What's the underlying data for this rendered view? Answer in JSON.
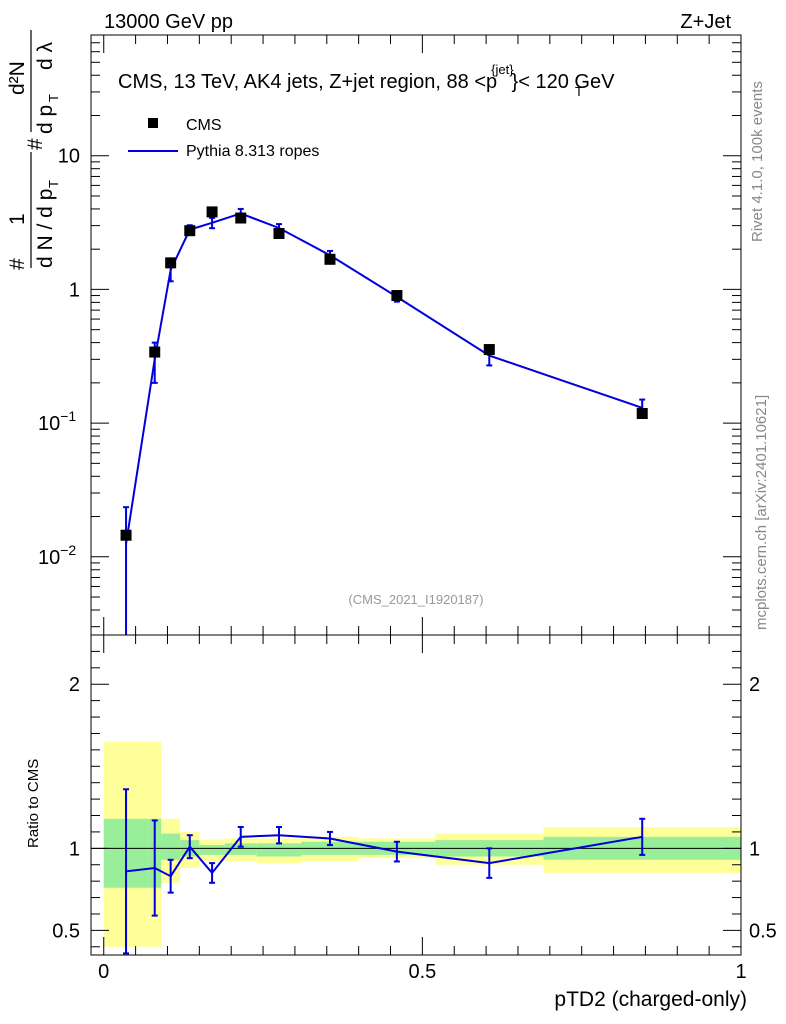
{
  "header": {
    "left": "13000 GeV pp",
    "right": "Z+Jet"
  },
  "side_labels": {
    "rivet": "Rivet 4.1.0,  100k events",
    "mcplots": "mcplots.cern.ch [arXiv:2401.10621]"
  },
  "chart_data": [
    {
      "type": "scatter",
      "panel": "main",
      "title": "CMS, 13 TeV, AK4 jets, Z+jet region, 88 <p",
      "title_sup": "{jet}",
      "title_sub": "T",
      "title_tail": "}< 120 GeV",
      "analysis_id": "(CMS_2021_I1920187)",
      "ylabel": "1 / dN/dpT  d²N / dpT dλ",
      "yscale": "log",
      "ylim": [
        0.0026,
        80
      ],
      "xlim": [
        -0.02,
        1.0
      ],
      "y_ticks": [
        {
          "value": 10,
          "label": "10"
        },
        {
          "value": 1,
          "label": "1"
        },
        {
          "value": 0.1,
          "label": "10",
          "exp": "−1"
        },
        {
          "value": 0.01,
          "label": "10",
          "exp": "−2"
        }
      ],
      "legend": [
        {
          "name": "CMS",
          "marker": "square",
          "color": "#000000"
        },
        {
          "name": "Pythia 8.313 ropes",
          "marker": "line",
          "color": "#0000dd"
        }
      ],
      "series": [
        {
          "name": "CMS",
          "x": [
            0.035,
            0.08,
            0.105,
            0.135,
            0.17,
            0.215,
            0.275,
            0.355,
            0.46,
            0.605,
            0.845
          ],
          "y": [
            0.0145,
            0.34,
            1.58,
            2.75,
            3.8,
            3.42,
            2.62,
            1.68,
            0.9,
            0.355,
            0.118
          ]
        },
        {
          "name": "Pythia 8.313 ropes",
          "x": [
            0.035,
            0.08,
            0.105,
            0.135,
            0.17,
            0.215,
            0.275,
            0.355,
            0.46,
            0.605,
            0.845
          ],
          "y": [
            0.0125,
            0.3,
            1.4,
            2.8,
            3.15,
            3.7,
            2.88,
            1.8,
            0.88,
            0.32,
            0.13
          ],
          "err": [
            0.011,
            0.1,
            0.25,
            0.22,
            0.28,
            0.3,
            0.2,
            0.14,
            0.07,
            0.05,
            0.02
          ]
        }
      ]
    },
    {
      "type": "line",
      "panel": "ratio",
      "ylabel": "Ratio to CMS",
      "xlabel": "pTD2 (charged-only)",
      "ylim": [
        0.35,
        2.3
      ],
      "xlim": [
        -0.02,
        1.0
      ],
      "y_ticks": [
        {
          "value": 2,
          "label": "2"
        },
        {
          "value": 1,
          "label": "1"
        },
        {
          "value": 0.5,
          "label": "0.5"
        }
      ],
      "x_ticks": [
        {
          "value": 0,
          "label": "0"
        },
        {
          "value": 0.5,
          "label": "0.5"
        },
        {
          "value": 1,
          "label": "1"
        }
      ],
      "bands": [
        {
          "x0": 0.0,
          "x1": 0.07,
          "yel": [
            0.4,
            1.65
          ],
          "grn": [
            0.76,
            1.18
          ]
        },
        {
          "x0": 0.07,
          "x1": 0.09,
          "yel": [
            0.4,
            1.65
          ],
          "grn": [
            0.76,
            1.18
          ]
        },
        {
          "x0": 0.09,
          "x1": 0.12,
          "yel": [
            0.79,
            1.18
          ],
          "grn": [
            0.93,
            1.09
          ]
        },
        {
          "x0": 0.12,
          "x1": 0.15,
          "yel": [
            0.88,
            1.1
          ],
          "grn": [
            0.95,
            1.05
          ]
        },
        {
          "x0": 0.15,
          "x1": 0.19,
          "yel": [
            0.92,
            1.05
          ],
          "grn": [
            0.96,
            1.02
          ]
        },
        {
          "x0": 0.19,
          "x1": 0.24,
          "yel": [
            0.92,
            1.06
          ],
          "grn": [
            0.96,
            1.03
          ]
        },
        {
          "x0": 0.24,
          "x1": 0.31,
          "yel": [
            0.91,
            1.06
          ],
          "grn": [
            0.95,
            1.03
          ]
        },
        {
          "x0": 0.31,
          "x1": 0.4,
          "yel": [
            0.92,
            1.07
          ],
          "grn": [
            0.96,
            1.04
          ]
        },
        {
          "x0": 0.4,
          "x1": 0.52,
          "yel": [
            0.94,
            1.06
          ],
          "grn": [
            0.96,
            1.04
          ]
        },
        {
          "x0": 0.52,
          "x1": 0.69,
          "yel": [
            0.9,
            1.09
          ],
          "grn": [
            0.95,
            1.05
          ]
        },
        {
          "x0": 0.69,
          "x1": 1.0,
          "yel": [
            0.85,
            1.13
          ],
          "grn": [
            0.93,
            1.07
          ]
        }
      ],
      "series": [
        {
          "name": "Pythia 8.313 ropes / CMS",
          "x": [
            0.035,
            0.08,
            0.105,
            0.135,
            0.17,
            0.215,
            0.275,
            0.355,
            0.46,
            0.605,
            0.845
          ],
          "y": [
            0.86,
            0.88,
            0.83,
            1.01,
            0.85,
            1.07,
            1.08,
            1.06,
            0.98,
            0.91,
            1.07
          ],
          "err": [
            0.5,
            0.29,
            0.1,
            0.07,
            0.06,
            0.06,
            0.05,
            0.04,
            0.06,
            0.09,
            0.11
          ]
        }
      ]
    }
  ]
}
